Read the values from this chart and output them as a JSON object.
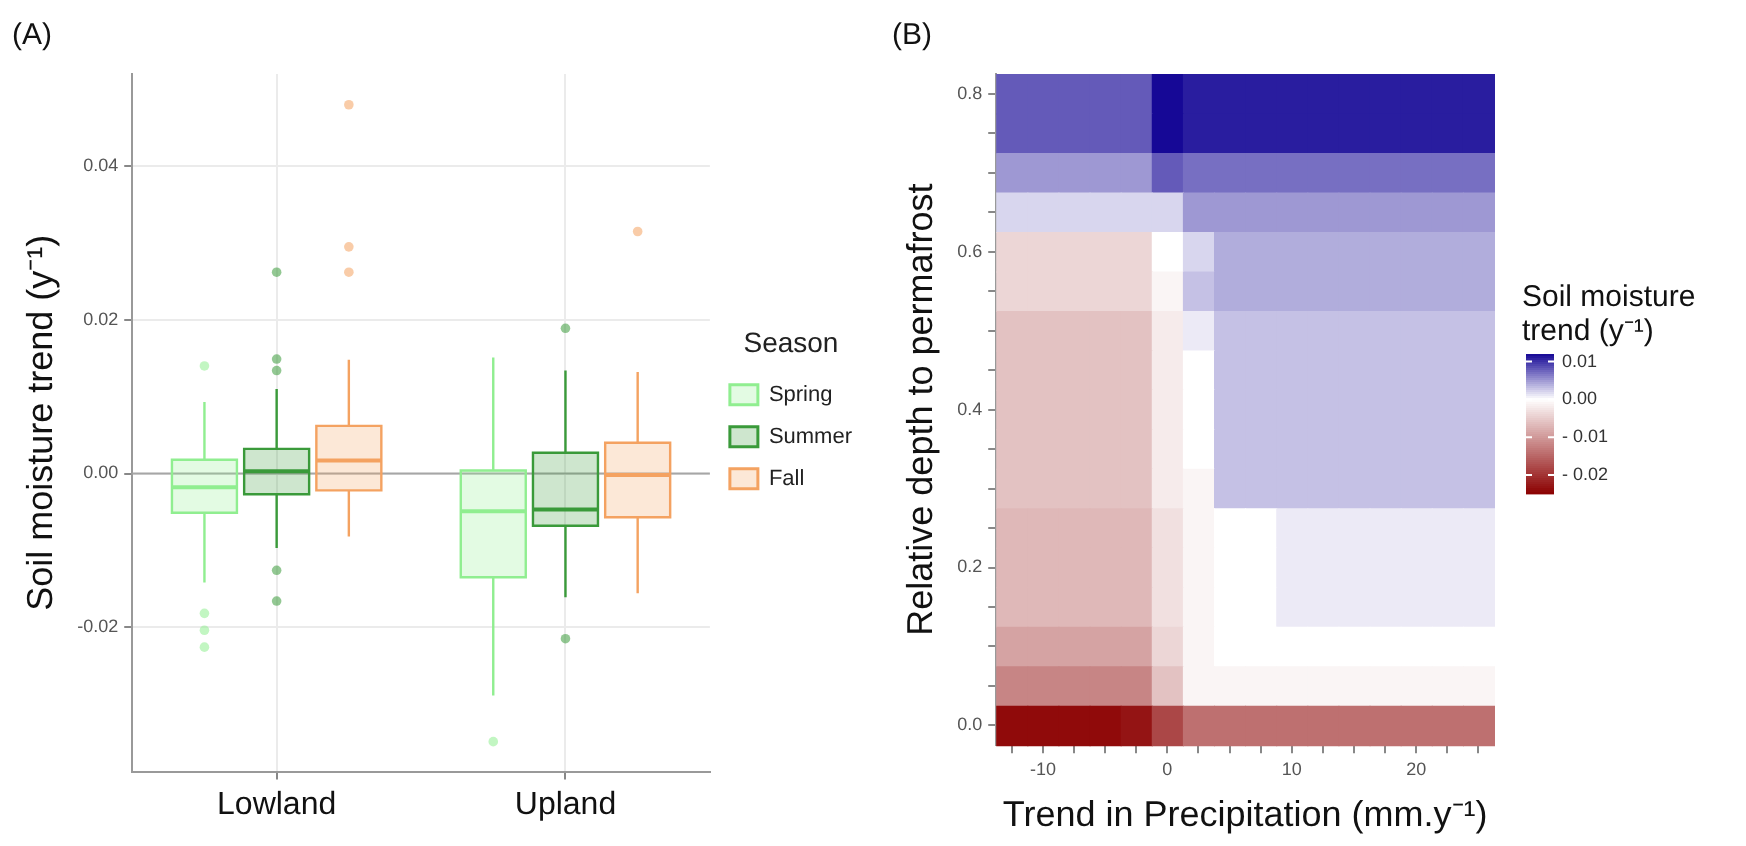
{
  "chart_data": [
    {
      "type": "box",
      "title": "(A)",
      "ylabel": "Soil moisture trend (y⁻¹)",
      "legend_title": "Season",
      "legend": "right",
      "grid": true,
      "categories": [
        "Lowland",
        "Upland"
      ],
      "ylim": [
        -0.0388,
        0.052
      ],
      "yticks": [
        -0.02,
        {
          "value": 0,
          "label": "0.00"
        },
        0.02,
        0.04
      ],
      "ref_lines": [
        {
          "axis": "y",
          "value": 0,
          "color": "#a6a6a6"
        }
      ],
      "series": [
        {
          "name": "Spring",
          "color": "#90ee90",
          "boxes": [
            {
              "low": -0.0142,
              "q1": -0.0051,
              "median": -0.0018,
              "q3": 0.0018,
              "high": 0.0093,
              "outliers": [
                0.014,
                -0.0182,
                -0.0204,
                -0.0226
              ]
            },
            {
              "low": -0.0289,
              "q1": -0.0135,
              "median": -0.0049,
              "q3": 0.0004,
              "high": 0.0151,
              "outliers": [
                -0.0349
              ]
            }
          ]
        },
        {
          "name": "Summer",
          "color": "#3a9a3a",
          "boxes": [
            {
              "low": -0.0097,
              "q1": -0.0027,
              "median": 0.0003,
              "q3": 0.0032,
              "high": 0.011,
              "outliers": [
                0.0262,
                0.0149,
                0.0134,
                -0.0126,
                -0.0166
              ]
            },
            {
              "low": -0.0161,
              "q1": -0.0068,
              "median": -0.0047,
              "q3": 0.0027,
              "high": 0.0134,
              "outliers": [
                0.0189,
                -0.0215
              ]
            }
          ]
        },
        {
          "name": "Fall",
          "color": "#f4a261",
          "boxes": [
            {
              "low": -0.0082,
              "q1": -0.0022,
              "median": 0.0017,
              "q3": 0.0062,
              "high": 0.0148,
              "outliers": [
                0.048,
                0.0295,
                0.0262
              ]
            },
            {
              "low": -0.0156,
              "q1": -0.0057,
              "median": -0.0002,
              "q3": 0.004,
              "high": 0.0132,
              "outliers": [
                0.0315
              ]
            }
          ]
        }
      ]
    },
    {
      "type": "heatmap",
      "title": "(B)",
      "xlabel": "Trend in Precipitation (mm.y⁻¹)",
      "ylabel": "Relative depth to permafrost",
      "clabel": "Soil moisture trend (y⁻¹)",
      "grid": true,
      "clim": [
        -0.025,
        0.012
      ],
      "cticks": [
        {
          "value": 0.01,
          "label": "0.01"
        },
        {
          "value": 0,
          "label": "0.00"
        },
        {
          "value": -0.01,
          "label": "- 0.01"
        },
        {
          "value": -0.02,
          "label": "- 0.02"
        }
      ],
      "categories": [
        null,
        "-10",
        null,
        null,
        null,
        "0",
        null,
        null,
        null,
        "10",
        null,
        null,
        null,
        "20",
        null,
        null
      ],
      "y_categories": [
        "0.8",
        null,
        null,
        null,
        "0.6",
        null,
        null,
        null,
        "0.4",
        null,
        null,
        null,
        "0.2",
        null,
        null,
        null,
        "0.0"
      ],
      "cells": [
        [
          0.008,
          0.008,
          0.008,
          0.008,
          0.008,
          0.012,
          0.011,
          0.011,
          0.011,
          0.011,
          0.011,
          0.011,
          0.011,
          0.011,
          0.011,
          0.011
        ],
        [
          0.008,
          0.008,
          0.008,
          0.008,
          0.008,
          0.012,
          0.011,
          0.011,
          0.011,
          0.011,
          0.011,
          0.011,
          0.011,
          0.011,
          0.011,
          0.011
        ],
        [
          0.005,
          0.005,
          0.005,
          0.005,
          0.005,
          0.008,
          0.007,
          0.007,
          0.007,
          0.007,
          0.007,
          0.007,
          0.007,
          0.007,
          0.007,
          0.007
        ],
        [
          0.002,
          0.002,
          0.002,
          0.002,
          0.002,
          0.002,
          0.005,
          0.005,
          0.005,
          0.005,
          0.005,
          0.005,
          0.005,
          0.005,
          0.005,
          0.005
        ],
        [
          -0.004,
          -0.004,
          -0.004,
          -0.004,
          -0.004,
          0,
          0.002,
          0.004,
          0.004,
          0.004,
          0.004,
          0.004,
          0.004,
          0.004,
          0.004,
          0.004
        ],
        [
          -0.004,
          -0.004,
          -0.004,
          -0.004,
          -0.004,
          -0.001,
          0.003,
          0.004,
          0.004,
          0.004,
          0.004,
          0.004,
          0.004,
          0.004,
          0.004,
          0.004
        ],
        [
          -0.006,
          -0.006,
          -0.006,
          -0.006,
          -0.006,
          -0.002,
          0.001,
          0.003,
          0.003,
          0.003,
          0.003,
          0.003,
          0.003,
          0.003,
          0.003,
          0.003
        ],
        [
          -0.006,
          -0.006,
          -0.006,
          -0.006,
          -0.006,
          -0.002,
          0,
          0.003,
          0.003,
          0.003,
          0.003,
          0.003,
          0.003,
          0.003,
          0.003,
          0.003
        ],
        [
          -0.006,
          -0.006,
          -0.006,
          -0.006,
          -0.006,
          -0.002,
          0,
          0.003,
          0.003,
          0.003,
          0.003,
          0.003,
          0.003,
          0.003,
          0.003,
          0.003
        ],
        [
          -0.006,
          -0.006,
          -0.006,
          -0.006,
          -0.006,
          -0.002,
          0,
          0.003,
          0.003,
          0.003,
          0.003,
          0.003,
          0.003,
          0.003,
          0.003,
          0.003
        ],
        [
          -0.006,
          -0.006,
          -0.006,
          -0.006,
          -0.006,
          -0.002,
          -0.001,
          0.003,
          0.003,
          0.003,
          0.003,
          0.003,
          0.003,
          0.003,
          0.003,
          0.003
        ],
        [
          -0.007,
          -0.007,
          -0.007,
          -0.007,
          -0.007,
          -0.003,
          -0.001,
          0,
          0,
          0.001,
          0.001,
          0.001,
          0.001,
          0.001,
          0.001,
          0.001
        ],
        [
          -0.007,
          -0.007,
          -0.007,
          -0.007,
          -0.007,
          -0.003,
          -0.001,
          0,
          0,
          0.001,
          0.001,
          0.001,
          0.001,
          0.001,
          0.001,
          0.001
        ],
        [
          -0.007,
          -0.007,
          -0.007,
          -0.007,
          -0.007,
          -0.003,
          -0.001,
          0,
          0,
          0.001,
          0.001,
          0.001,
          0.001,
          0.001,
          0.001,
          0.001
        ],
        [
          -0.009,
          -0.009,
          -0.009,
          -0.009,
          -0.009,
          -0.004,
          -0.001,
          0,
          0,
          0,
          0,
          0,
          0,
          0,
          0,
          0
        ],
        [
          -0.012,
          -0.012,
          -0.012,
          -0.012,
          -0.012,
          -0.006,
          -0.001,
          -0.001,
          -0.001,
          -0.001,
          -0.001,
          -0.001,
          -0.001,
          -0.001,
          -0.001,
          -0.001
        ],
        [
          -0.024,
          -0.024,
          -0.024,
          -0.024,
          -0.023,
          -0.018,
          -0.014,
          -0.014,
          -0.014,
          -0.014,
          -0.014,
          -0.014,
          -0.014,
          -0.014,
          -0.014,
          -0.014
        ]
      ]
    }
  ]
}
